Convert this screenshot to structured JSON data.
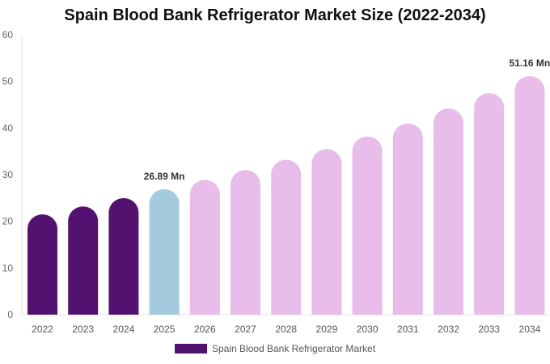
{
  "chart_data": {
    "type": "bar",
    "title": "Spain Blood Bank Refrigerator Market Size (2022-2034)",
    "xlabel": "",
    "ylabel": "",
    "ylim": [
      0,
      60
    ],
    "yticks": [
      0,
      10,
      20,
      30,
      40,
      50,
      60
    ],
    "grid": false,
    "legend_position": "bottom",
    "categories": [
      "2022",
      "2023",
      "2024",
      "2025",
      "2026",
      "2027",
      "2028",
      "2029",
      "2030",
      "2031",
      "2032",
      "2033",
      "2034"
    ],
    "series": [
      {
        "name": "Spain Blood Bank Refrigerator Market",
        "values": [
          21.5,
          23.2,
          25.0,
          26.89,
          28.9,
          31.0,
          33.2,
          35.5,
          38.2,
          41.0,
          44.2,
          47.5,
          51.16
        ]
      }
    ],
    "annotations": [
      {
        "category": "2025",
        "text": "26.89 Mn"
      },
      {
        "category": "2034",
        "text": "51.16 Mn"
      }
    ],
    "colors": {
      "historical": "#541270",
      "base_year": "#a3cadd",
      "forecast": "#e8bde9",
      "legend": "#541270"
    }
  }
}
